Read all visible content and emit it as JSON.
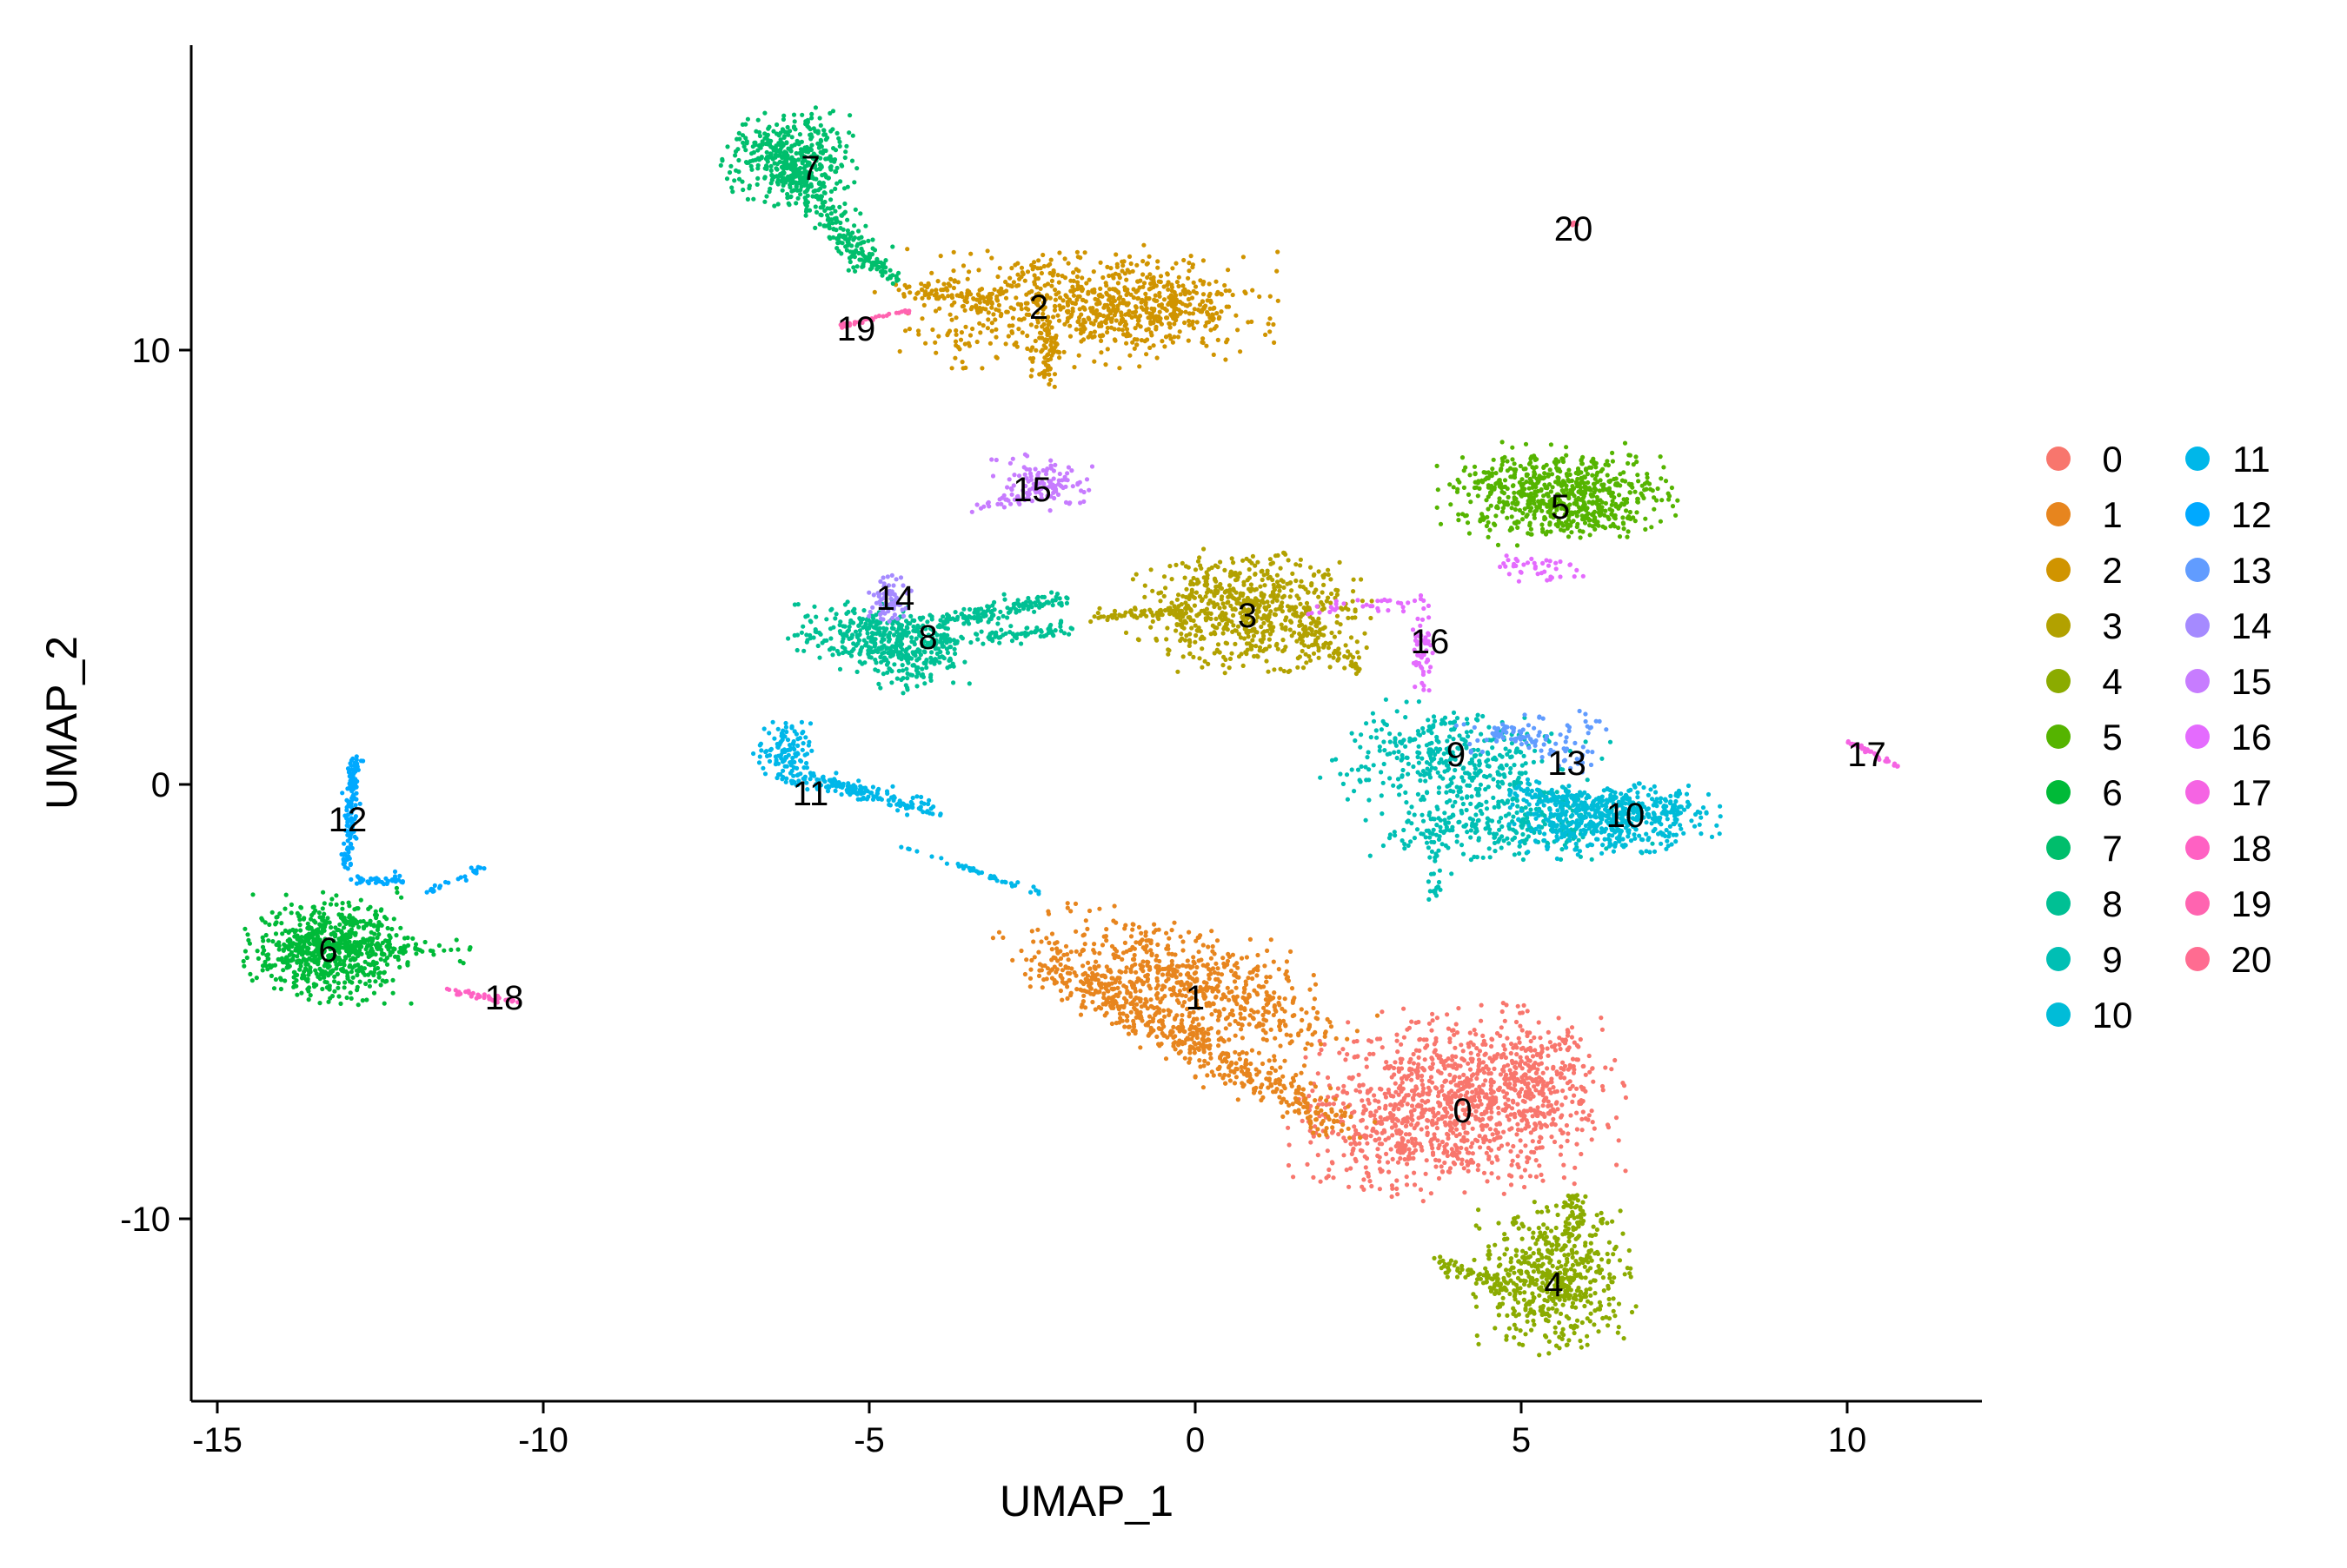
{
  "chart_data": {
    "type": "scatter",
    "title": "",
    "xlabel": "UMAP_1",
    "ylabel": "UMAP_2",
    "xlim": [
      -15.4,
      12
    ],
    "ylim": [
      -14,
      17
    ],
    "xticks": [
      -15,
      -10,
      -5,
      0,
      5,
      10
    ],
    "yticks": [
      -10,
      0,
      10
    ],
    "grid": false,
    "legend_position": "right",
    "legend_title": "",
    "clusters": [
      {
        "name": "0",
        "color": "#F8766D",
        "label_pos": [
          4.1,
          -7.5
        ]
      },
      {
        "name": "1",
        "color": "#E7851E",
        "label_pos": [
          0.0,
          -4.9
        ]
      },
      {
        "name": "2",
        "color": "#D09400",
        "label_pos": [
          -2.4,
          11.0
        ]
      },
      {
        "name": "3",
        "color": "#B2A100",
        "label_pos": [
          0.8,
          3.9
        ]
      },
      {
        "name": "4",
        "color": "#8BAB00",
        "label_pos": [
          5.5,
          -11.5
        ]
      },
      {
        "name": "5",
        "color": "#55B400",
        "label_pos": [
          5.6,
          6.4
        ]
      },
      {
        "name": "6",
        "color": "#00BA38",
        "label_pos": [
          -13.3,
          -3.8
        ]
      },
      {
        "name": "7",
        "color": "#00BE6C",
        "label_pos": [
          -5.9,
          14.2
        ]
      },
      {
        "name": "8",
        "color": "#00C094",
        "label_pos": [
          -4.1,
          3.4
        ]
      },
      {
        "name": "9",
        "color": "#00BFB4",
        "label_pos": [
          4.0,
          0.7
        ]
      },
      {
        "name": "10",
        "color": "#00BCD8",
        "label_pos": [
          6.6,
          -0.7
        ]
      },
      {
        "name": "11",
        "color": "#00B7E9",
        "label_pos": [
          -5.9,
          -0.2
        ]
      },
      {
        "name": "12",
        "color": "#00A9FF",
        "label_pos": [
          -13.0,
          -0.8
        ]
      },
      {
        "name": "13",
        "color": "#619CFF",
        "label_pos": [
          5.7,
          0.5
        ]
      },
      {
        "name": "14",
        "color": "#A58AFF",
        "label_pos": [
          -4.6,
          4.3
        ]
      },
      {
        "name": "15",
        "color": "#C77CFF",
        "label_pos": [
          -2.5,
          6.8
        ]
      },
      {
        "name": "16",
        "color": "#E46BFE",
        "label_pos": [
          3.6,
          3.3
        ]
      },
      {
        "name": "17",
        "color": "#F564E3",
        "label_pos": [
          10.3,
          0.7
        ]
      },
      {
        "name": "18",
        "color": "#FF61C3",
        "label_pos": [
          -10.6,
          -4.9
        ]
      },
      {
        "name": "19",
        "color": "#FF64B0",
        "label_pos": [
          -5.2,
          10.5
        ]
      },
      {
        "name": "20",
        "color": "#FF6C91",
        "label_pos": [
          5.8,
          12.8
        ]
      }
    ]
  }
}
